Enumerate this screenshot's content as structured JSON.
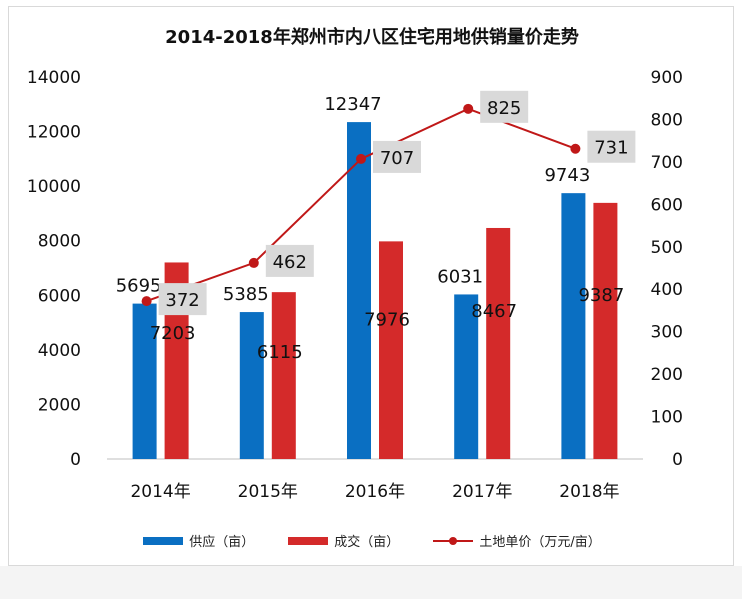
{
  "chart_data": {
    "type": "bar",
    "title": "2014-2018年郑州市内八区住宅用地供销量价走势",
    "categories": [
      "2014年",
      "2015年",
      "2016年",
      "2017年",
      "2018年"
    ],
    "series": [
      {
        "name": "供应（亩）",
        "type": "bar",
        "axis": "left",
        "color": "#0a6fc2",
        "values": [
          5695,
          5385,
          12347,
          6031,
          9743
        ]
      },
      {
        "name": "成交（亩）",
        "type": "bar",
        "axis": "left",
        "color": "#d42a2a",
        "values": [
          7203,
          6115,
          7976,
          8467,
          9387
        ]
      },
      {
        "name": "土地单价（万元/亩）",
        "type": "line",
        "axis": "right",
        "color": "#c01818",
        "values": [
          372,
          462,
          707,
          825,
          731
        ]
      }
    ],
    "ylim_left": [
      0,
      14000
    ],
    "yticks_left": [
      "0",
      "2000",
      "4000",
      "6000",
      "8000",
      "10000",
      "12000",
      "14000"
    ],
    "ylim_right": [
      0,
      900
    ],
    "yticks_right": [
      "0",
      "100",
      "200",
      "300",
      "400",
      "500",
      "600",
      "700",
      "800",
      "900"
    ],
    "legend_position": "bottom",
    "grid": false
  }
}
